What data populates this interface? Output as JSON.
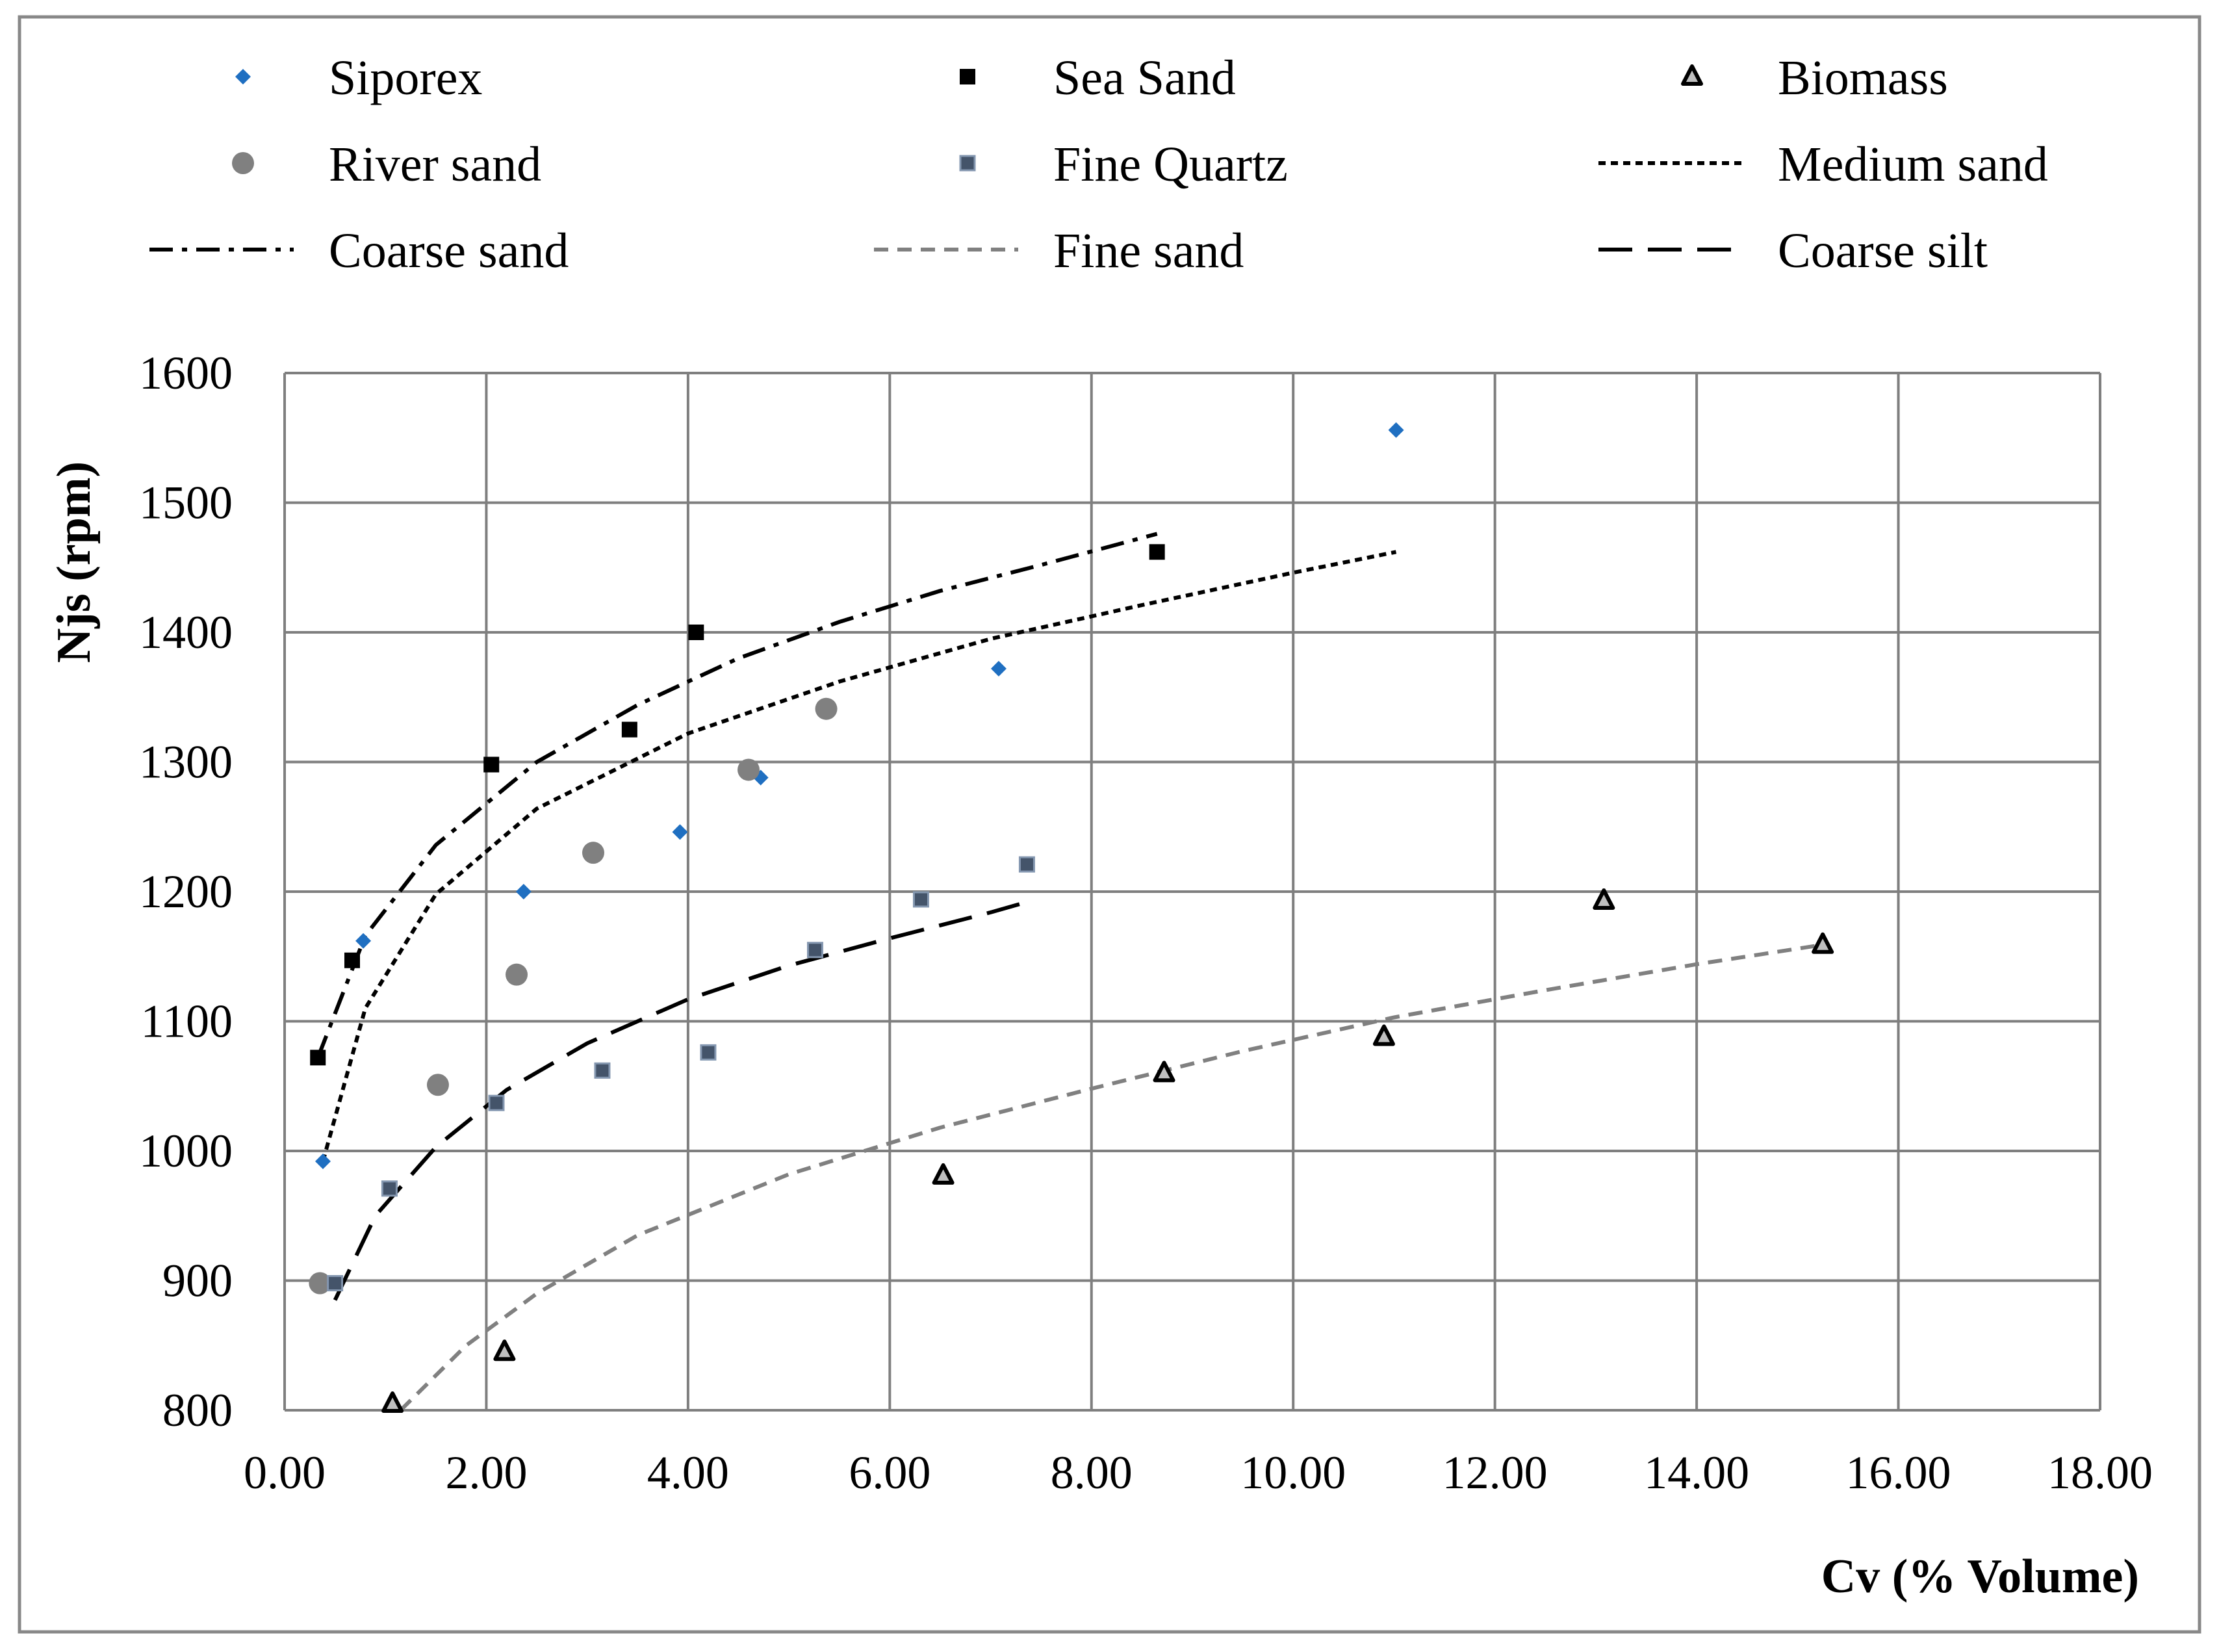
{
  "chart_data": {
    "type": "scatter",
    "title": "",
    "xlabel": "Cv (% Volume)",
    "ylabel": "Njs (rpm)",
    "xlim": [
      0,
      18
    ],
    "ylim": [
      800,
      1600
    ],
    "xticks": [
      0,
      2,
      4,
      6,
      8,
      10,
      12,
      14,
      16,
      18
    ],
    "xtick_labels": [
      "0.00",
      "2.00",
      "4.00",
      "6.00",
      "8.00",
      "10.00",
      "12.00",
      "14.00",
      "16.00",
      "18.00"
    ],
    "yticks": [
      800,
      900,
      1000,
      1100,
      1200,
      1300,
      1400,
      1500,
      1600
    ],
    "ytick_labels": [
      "800",
      "900",
      "1000",
      "1100",
      "1200",
      "1300",
      "1400",
      "1500",
      "1600"
    ],
    "grid": true,
    "legend_position": "top",
    "series": [
      {
        "name": "Siporex",
        "kind": "points",
        "marker": "diamond",
        "color": "#1F6FC1",
        "x": [
          0.38,
          0.78,
          2.37,
          3.92,
          4.72,
          7.08,
          11.02
        ],
        "y": [
          992,
          1162,
          1200,
          1246,
          1288,
          1372,
          1556
        ]
      },
      {
        "name": "Sea Sand",
        "kind": "points",
        "marker": "square",
        "color": "#000000",
        "x": [
          0.33,
          0.67,
          2.05,
          3.42,
          4.08,
          8.65
        ],
        "y": [
          1072,
          1147,
          1298,
          1325,
          1400,
          1462
        ]
      },
      {
        "name": "Biomass",
        "kind": "points",
        "marker": "triangle",
        "color": "#000000",
        "x": [
          1.07,
          2.18,
          6.53,
          8.72,
          10.9,
          13.08,
          15.25
        ],
        "y": [
          805,
          845,
          981,
          1060,
          1088,
          1193,
          1159
        ]
      },
      {
        "name": "River sand",
        "kind": "points",
        "marker": "circle",
        "color": "#808080",
        "x": [
          0.35,
          1.52,
          2.3,
          3.06,
          4.6,
          5.37
        ],
        "y": [
          898,
          1051,
          1136,
          1230,
          1294,
          1341
        ]
      },
      {
        "name": "Fine Quartz",
        "kind": "points",
        "marker": "square-small",
        "color": "#44546A",
        "x": [
          0.5,
          1.04,
          2.1,
          3.15,
          4.2,
          5.26,
          6.31,
          7.36
        ],
        "y": [
          898,
          971,
          1037,
          1062,
          1076,
          1155,
          1194,
          1221
        ]
      },
      {
        "name": "Medium sand",
        "kind": "line",
        "dash": "dotted",
        "color": "#000000",
        "x": [
          0.38,
          0.8,
          1.5,
          2.5,
          4.0,
          5.5,
          7.0,
          8.5,
          10.0,
          11.02
        ],
        "y": [
          992,
          1110,
          1198,
          1264,
          1322,
          1362,
          1395,
          1421,
          1446,
          1462
        ]
      },
      {
        "name": "Coarse sand",
        "kind": "line",
        "dash": "dashdot",
        "color": "#000000",
        "x": [
          0.33,
          0.8,
          1.5,
          2.5,
          3.5,
          4.5,
          5.5,
          6.5,
          7.5,
          8.65
        ],
        "y": [
          1072,
          1166,
          1236,
          1300,
          1344,
          1380,
          1408,
          1432,
          1452,
          1476
        ]
      },
      {
        "name": "Fine sand",
        "kind": "line",
        "dash": "dashed",
        "color": "#808080",
        "x": [
          1.15,
          1.8,
          2.5,
          3.5,
          5.0,
          6.5,
          8.0,
          9.5,
          11.0,
          12.5,
          14.0,
          15.25
        ],
        "y": [
          800,
          850,
          890,
          935,
          982,
          1018,
          1048,
          1077,
          1103,
          1124,
          1144,
          1159
        ]
      },
      {
        "name": "Coarse silt",
        "kind": "line",
        "dash": "longdash",
        "color": "#000000",
        "x": [
          0.5,
          0.9,
          1.5,
          2.2,
          3.0,
          4.0,
          5.0,
          6.0,
          7.0,
          7.36
        ],
        "y": [
          885,
          950,
          1003,
          1047,
          1083,
          1117,
          1143,
          1164,
          1184,
          1192
        ]
      }
    ]
  }
}
